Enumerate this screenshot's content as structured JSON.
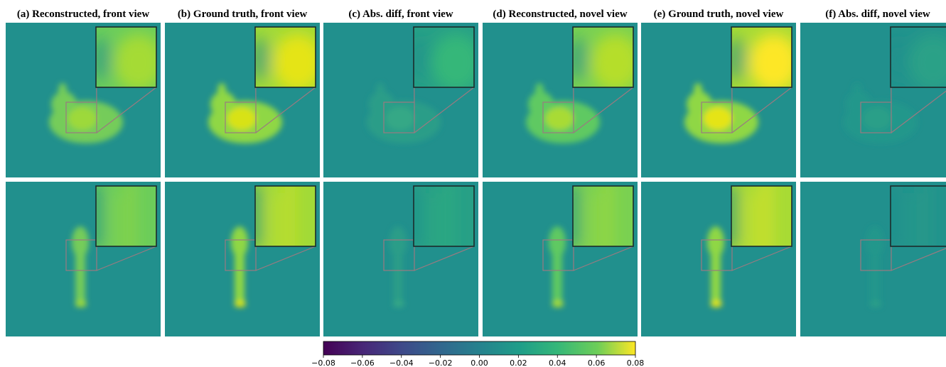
{
  "panels": [
    {
      "title": "(a) Reconstructed, front view"
    },
    {
      "title": "(b) Ground truth, front view"
    },
    {
      "title": "(c) Abs. diff, front view"
    },
    {
      "title": "(d) Reconstructed, novel view"
    },
    {
      "title": "(e) Ground truth, novel view"
    },
    {
      "title": "(f) Abs. diff, novel view"
    }
  ],
  "colorbar": {
    "colormap": "viridis",
    "lim": [
      -0.08,
      0.08
    ],
    "ticks": [
      {
        "value": -0.08,
        "label": "−0.08"
      },
      {
        "value": -0.06,
        "label": "−0.06"
      },
      {
        "value": -0.04,
        "label": "−0.04"
      },
      {
        "value": -0.02,
        "label": "−0.02"
      },
      {
        "value": 0,
        "label": "0.00"
      },
      {
        "value": 0.02,
        "label": "0.02"
      },
      {
        "value": 0.04,
        "label": "0.04"
      },
      {
        "value": 0.06,
        "label": "0.06"
      },
      {
        "value": 0.08,
        "label": "0.08"
      }
    ]
  }
}
